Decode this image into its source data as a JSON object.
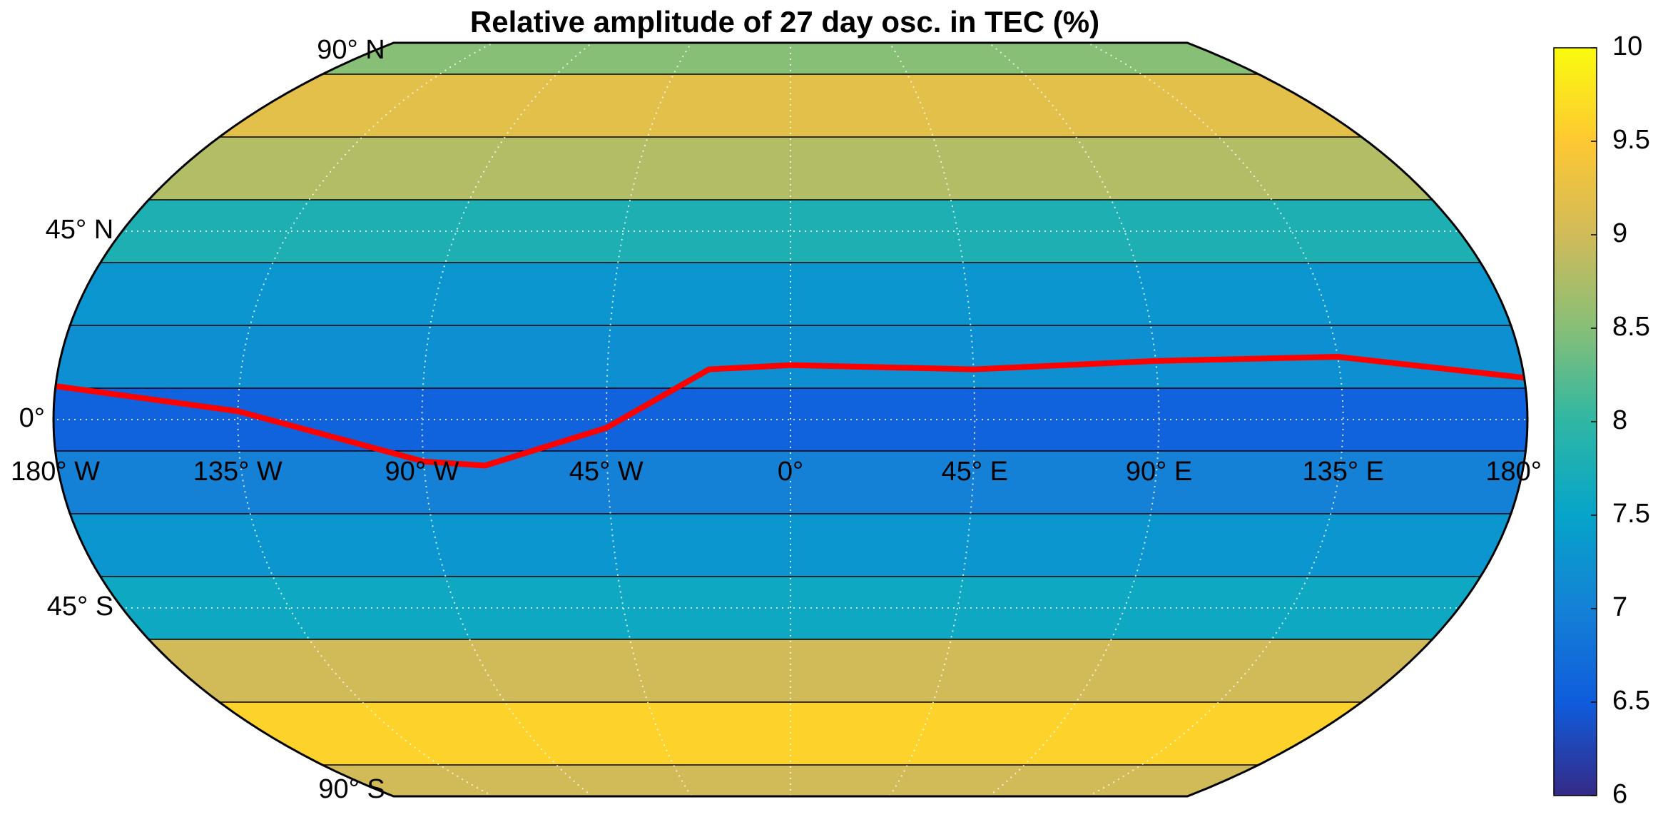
{
  "chart_data": {
    "type": "map",
    "title": "Relative amplitude of 27 day osc. in TEC (%)",
    "projection": "pseudo-cylindrical",
    "lat_ticks": [
      {
        "value": 90,
        "label": "90° N"
      },
      {
        "value": 45,
        "label": "45° N"
      },
      {
        "value": 0,
        "label": "0°"
      },
      {
        "value": -45,
        "label": "45° S"
      },
      {
        "value": -90,
        "label": "90° S"
      }
    ],
    "lon_ticks": [
      {
        "value": -180,
        "label": "180° W"
      },
      {
        "value": -135,
        "label": "135° W"
      },
      {
        "value": -90,
        "label": "90° W"
      },
      {
        "value": -45,
        "label": "45° W"
      },
      {
        "value": 0,
        "label": "0°"
      },
      {
        "value": 45,
        "label": "45° E"
      },
      {
        "value": 90,
        "label": "90° E"
      },
      {
        "value": 135,
        "label": "135° E"
      },
      {
        "value": 180,
        "label": "180°"
      }
    ],
    "zonal": {
      "lat": [
        90,
        75,
        60,
        45,
        30,
        15,
        0,
        -15,
        -30,
        -45,
        -60,
        -75,
        -90
      ],
      "values": [
        8.5,
        9.2,
        8.8,
        7.8,
        7.3,
        7.2,
        6.6,
        7.0,
        7.3,
        7.6,
        9.0,
        9.6,
        9.0
      ]
    },
    "magnetic_equator": {
      "color": "#ff0000",
      "lon": [
        -180,
        -135,
        -90,
        -75,
        -45,
        -20,
        0,
        45,
        90,
        135,
        180
      ],
      "lat": [
        8,
        2,
        -10,
        -11,
        -2,
        12,
        13,
        12,
        14,
        15,
        10
      ]
    },
    "clim": [
      6,
      10
    ],
    "colorbar_ticks": [
      6,
      6.5,
      7,
      7.5,
      8,
      8.5,
      9,
      9.5,
      10
    ],
    "colormap": [
      "#352a87",
      "#0f5cdd",
      "#1481d6",
      "#06a4ca",
      "#2eb7a4",
      "#87bf77",
      "#d1bb59",
      "#fec832",
      "#f9fb0e"
    ]
  }
}
